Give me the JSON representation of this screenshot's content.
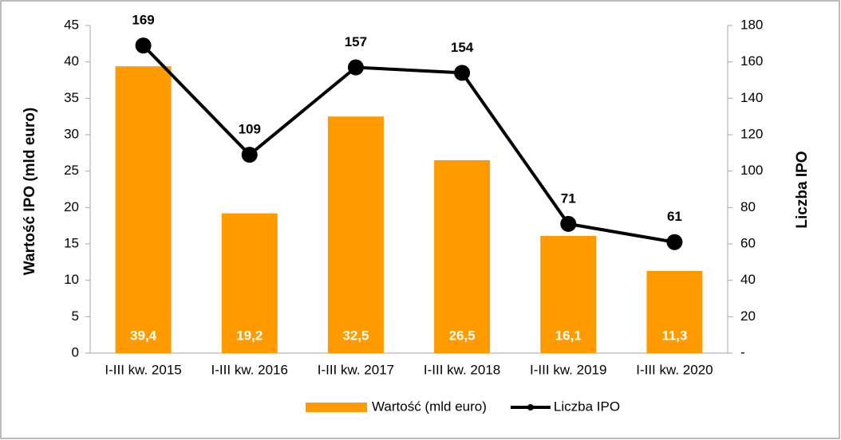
{
  "chart_data": {
    "type": "bar",
    "y_label": "Wartość IPO (mld euro)",
    "y2_label": "Liczba IPO",
    "categories": [
      "I-III kw. 2015",
      "I-III kw. 2016",
      "I-III kw. 2017",
      "I-III kw. 2018",
      "I-III kw. 2019",
      "I-III kw. 2020"
    ],
    "series": [
      {
        "name": "Wartość (mld euro)",
        "type": "bar",
        "color": "#ff9b00",
        "values": [
          39.4,
          19.2,
          32.5,
          26.5,
          16.1,
          11.3
        ],
        "value_labels": [
          "39,4",
          "19,2",
          "32,5",
          "26,5",
          "16,1",
          "11,3"
        ]
      },
      {
        "name": "Liczba IPO",
        "type": "line",
        "axis": "y2",
        "color": "#000000",
        "values": [
          169,
          109,
          157,
          154,
          71,
          61
        ]
      }
    ],
    "ylim": [
      0,
      45
    ],
    "yticks": [
      0,
      5,
      10,
      15,
      20,
      25,
      30,
      35,
      40,
      45
    ],
    "y2lim": [
      0,
      180
    ],
    "y2ticks": [
      {
        "value": 0,
        "label": "-"
      },
      20,
      40,
      60,
      80,
      100,
      120,
      140,
      160,
      180
    ],
    "legend": "bottom"
  }
}
